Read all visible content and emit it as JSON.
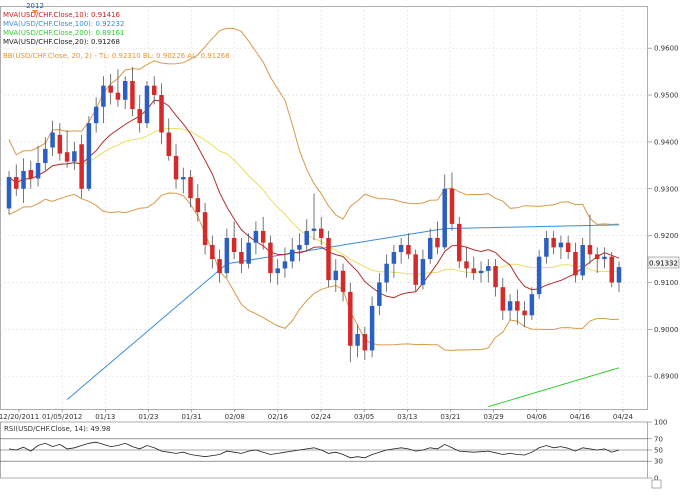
{
  "chart_data": {
    "type": "candlestick",
    "symbol": "USD/CHF",
    "top_marker": "2012",
    "legend": [
      {
        "text": "MVA(USD/CHF.Close,10): 0.91416",
        "color": "#cc2222"
      },
      {
        "text": "MVA(USD/CHF.Close,100): 0.92232",
        "color": "#3a8ed8"
      },
      {
        "text": "MVA(USD/CHF.Close,200): 0.89161",
        "color": "#33cc33"
      },
      {
        "text": "MVA(USD/CHF.Close,20): 0.91268",
        "color": "#222222"
      },
      {
        "text": "BB(USD/CHF.Close, 20, 2) - TL: 0.92310  BL: 0.90226  AL: 0.91268",
        "color": "#e89430"
      }
    ],
    "price_axis": {
      "min": 0.883,
      "max": 0.969,
      "ticks": [
        "0.9600",
        "0.9500",
        "0.9400",
        "0.9300",
        "0.9200",
        "0.9100",
        "0.9000",
        "0.8900"
      ],
      "last_price": "0.91332"
    },
    "x_ticks": [
      "12/20/2011",
      "01/05/2012",
      "01/13",
      "01/23",
      "01/31",
      "02/08",
      "02/16",
      "02/24",
      "03/05",
      "03/13",
      "03/21",
      "03/29",
      "04/06",
      "04/16",
      "04/24"
    ],
    "candles": [
      {
        "o": 0.9258,
        "h": 0.9338,
        "l": 0.9245,
        "c": 0.9325
      },
      {
        "o": 0.9325,
        "h": 0.9352,
        "l": 0.9285,
        "c": 0.93
      },
      {
        "o": 0.93,
        "h": 0.9365,
        "l": 0.927,
        "c": 0.9338
      },
      {
        "o": 0.934,
        "h": 0.936,
        "l": 0.93,
        "c": 0.9322
      },
      {
        "o": 0.9322,
        "h": 0.9392,
        "l": 0.9305,
        "c": 0.9355
      },
      {
        "o": 0.9355,
        "h": 0.941,
        "l": 0.934,
        "c": 0.9385
      },
      {
        "o": 0.9388,
        "h": 0.9445,
        "l": 0.937,
        "c": 0.942
      },
      {
        "o": 0.9415,
        "h": 0.944,
        "l": 0.936,
        "c": 0.9375
      },
      {
        "o": 0.9378,
        "h": 0.9425,
        "l": 0.9345,
        "c": 0.9358
      },
      {
        "o": 0.9358,
        "h": 0.94,
        "l": 0.934,
        "c": 0.938
      },
      {
        "o": 0.9395,
        "h": 0.9415,
        "l": 0.928,
        "c": 0.93
      },
      {
        "o": 0.93,
        "h": 0.9455,
        "l": 0.9295,
        "c": 0.944
      },
      {
        "o": 0.944,
        "h": 0.9495,
        "l": 0.942,
        "c": 0.9475
      },
      {
        "o": 0.9475,
        "h": 0.954,
        "l": 0.944,
        "c": 0.952
      },
      {
        "o": 0.952,
        "h": 0.9545,
        "l": 0.948,
        "c": 0.9505
      },
      {
        "o": 0.9505,
        "h": 0.9555,
        "l": 0.9475,
        "c": 0.949
      },
      {
        "o": 0.949,
        "h": 0.954,
        "l": 0.947,
        "c": 0.953
      },
      {
        "o": 0.953,
        "h": 0.956,
        "l": 0.9455,
        "c": 0.947
      },
      {
        "o": 0.947,
        "h": 0.95,
        "l": 0.942,
        "c": 0.944
      },
      {
        "o": 0.944,
        "h": 0.953,
        "l": 0.943,
        "c": 0.952
      },
      {
        "o": 0.952,
        "h": 0.954,
        "l": 0.948,
        "c": 0.95
      },
      {
        "o": 0.95,
        "h": 0.9525,
        "l": 0.9395,
        "c": 0.942
      },
      {
        "o": 0.942,
        "h": 0.945,
        "l": 0.936,
        "c": 0.937
      },
      {
        "o": 0.937,
        "h": 0.9395,
        "l": 0.93,
        "c": 0.932
      },
      {
        "o": 0.932,
        "h": 0.9345,
        "l": 0.929,
        "c": 0.9325
      },
      {
        "o": 0.9325,
        "h": 0.934,
        "l": 0.926,
        "c": 0.928
      },
      {
        "o": 0.928,
        "h": 0.931,
        "l": 0.923,
        "c": 0.925
      },
      {
        "o": 0.925,
        "h": 0.927,
        "l": 0.916,
        "c": 0.918
      },
      {
        "o": 0.918,
        "h": 0.92,
        "l": 0.913,
        "c": 0.915
      },
      {
        "o": 0.915,
        "h": 0.917,
        "l": 0.91,
        "c": 0.912
      },
      {
        "o": 0.912,
        "h": 0.9215,
        "l": 0.911,
        "c": 0.9195
      },
      {
        "o": 0.9195,
        "h": 0.923,
        "l": 0.915,
        "c": 0.9165
      },
      {
        "o": 0.9165,
        "h": 0.9195,
        "l": 0.912,
        "c": 0.914
      },
      {
        "o": 0.914,
        "h": 0.9205,
        "l": 0.913,
        "c": 0.9185
      },
      {
        "o": 0.9185,
        "h": 0.923,
        "l": 0.916,
        "c": 0.921
      },
      {
        "o": 0.921,
        "h": 0.924,
        "l": 0.917,
        "c": 0.9185
      },
      {
        "o": 0.9185,
        "h": 0.92,
        "l": 0.91,
        "c": 0.912
      },
      {
        "o": 0.912,
        "h": 0.915,
        "l": 0.9095,
        "c": 0.913
      },
      {
        "o": 0.913,
        "h": 0.9175,
        "l": 0.911,
        "c": 0.9145
      },
      {
        "o": 0.9145,
        "h": 0.9195,
        "l": 0.913,
        "c": 0.917
      },
      {
        "o": 0.917,
        "h": 0.9205,
        "l": 0.9145,
        "c": 0.918
      },
      {
        "o": 0.918,
        "h": 0.9235,
        "l": 0.9165,
        "c": 0.921
      },
      {
        "o": 0.921,
        "h": 0.929,
        "l": 0.919,
        "c": 0.9215
      },
      {
        "o": 0.9215,
        "h": 0.924,
        "l": 0.918,
        "c": 0.9195
      },
      {
        "o": 0.9195,
        "h": 0.921,
        "l": 0.909,
        "c": 0.9105
      },
      {
        "o": 0.9105,
        "h": 0.915,
        "l": 0.908,
        "c": 0.9125
      },
      {
        "o": 0.9125,
        "h": 0.914,
        "l": 0.906,
        "c": 0.908
      },
      {
        "o": 0.908,
        "h": 0.91,
        "l": 0.893,
        "c": 0.8965
      },
      {
        "o": 0.8965,
        "h": 0.901,
        "l": 0.894,
        "c": 0.899
      },
      {
        "o": 0.899,
        "h": 0.9005,
        "l": 0.8935,
        "c": 0.8955
      },
      {
        "o": 0.8955,
        "h": 0.907,
        "l": 0.894,
        "c": 0.905
      },
      {
        "o": 0.905,
        "h": 0.912,
        "l": 0.903,
        "c": 0.91
      },
      {
        "o": 0.91,
        "h": 0.916,
        "l": 0.908,
        "c": 0.914
      },
      {
        "o": 0.914,
        "h": 0.918,
        "l": 0.911,
        "c": 0.9165
      },
      {
        "o": 0.9165,
        "h": 0.9195,
        "l": 0.914,
        "c": 0.918
      },
      {
        "o": 0.918,
        "h": 0.9205,
        "l": 0.915,
        "c": 0.916
      },
      {
        "o": 0.916,
        "h": 0.917,
        "l": 0.908,
        "c": 0.9095
      },
      {
        "o": 0.9095,
        "h": 0.917,
        "l": 0.9085,
        "c": 0.915
      },
      {
        "o": 0.915,
        "h": 0.9215,
        "l": 0.914,
        "c": 0.9195
      },
      {
        "o": 0.9195,
        "h": 0.923,
        "l": 0.916,
        "c": 0.9175
      },
      {
        "o": 0.9175,
        "h": 0.933,
        "l": 0.917,
        "c": 0.93
      },
      {
        "o": 0.93,
        "h": 0.9335,
        "l": 0.921,
        "c": 0.9225
      },
      {
        "o": 0.9225,
        "h": 0.924,
        "l": 0.913,
        "c": 0.9145
      },
      {
        "o": 0.9145,
        "h": 0.9175,
        "l": 0.911,
        "c": 0.913
      },
      {
        "o": 0.913,
        "h": 0.9155,
        "l": 0.9105,
        "c": 0.912
      },
      {
        "o": 0.912,
        "h": 0.9145,
        "l": 0.91,
        "c": 0.9125
      },
      {
        "o": 0.9125,
        "h": 0.915,
        "l": 0.91,
        "c": 0.9135
      },
      {
        "o": 0.9135,
        "h": 0.915,
        "l": 0.907,
        "c": 0.909
      },
      {
        "o": 0.909,
        "h": 0.911,
        "l": 0.902,
        "c": 0.904
      },
      {
        "o": 0.904,
        "h": 0.9075,
        "l": 0.902,
        "c": 0.906
      },
      {
        "o": 0.906,
        "h": 0.9085,
        "l": 0.901,
        "c": 0.904
      },
      {
        "o": 0.904,
        "h": 0.906,
        "l": 0.9005,
        "c": 0.903
      },
      {
        "o": 0.903,
        "h": 0.909,
        "l": 0.902,
        "c": 0.9075
      },
      {
        "o": 0.9075,
        "h": 0.917,
        "l": 0.9065,
        "c": 0.9155
      },
      {
        "o": 0.9155,
        "h": 0.921,
        "l": 0.914,
        "c": 0.9195
      },
      {
        "o": 0.9195,
        "h": 0.921,
        "l": 0.916,
        "c": 0.9175
      },
      {
        "o": 0.9175,
        "h": 0.92,
        "l": 0.915,
        "c": 0.9185
      },
      {
        "o": 0.9185,
        "h": 0.92,
        "l": 0.915,
        "c": 0.9165
      },
      {
        "o": 0.9165,
        "h": 0.9185,
        "l": 0.91,
        "c": 0.9115
      },
      {
        "o": 0.9115,
        "h": 0.9195,
        "l": 0.9105,
        "c": 0.918
      },
      {
        "o": 0.918,
        "h": 0.9245,
        "l": 0.914,
        "c": 0.916
      },
      {
        "o": 0.916,
        "h": 0.9175,
        "l": 0.912,
        "c": 0.915
      },
      {
        "o": 0.915,
        "h": 0.9175,
        "l": 0.913,
        "c": 0.9155
      },
      {
        "o": 0.9155,
        "h": 0.9165,
        "l": 0.909,
        "c": 0.91
      },
      {
        "o": 0.91,
        "h": 0.9145,
        "l": 0.908,
        "c": 0.9133
      }
    ],
    "rsi": {
      "label": "RSI(USD/CHF.Close, 14): 49.98",
      "ticks": [
        "100",
        "70",
        "50",
        "30",
        "0"
      ],
      "values": [
        52,
        50,
        55,
        48,
        58,
        62,
        56,
        60,
        52,
        54,
        58,
        62,
        64,
        60,
        56,
        58,
        62,
        56,
        52,
        58,
        54,
        48,
        46,
        44,
        46,
        42,
        40,
        38,
        40,
        42,
        48,
        46,
        44,
        48,
        50,
        46,
        42,
        44,
        46,
        48,
        50,
        52,
        54,
        50,
        44,
        46,
        42,
        36,
        38,
        36,
        42,
        46,
        50,
        52,
        54,
        52,
        48,
        50,
        54,
        52,
        60,
        54,
        48,
        47,
        46,
        47,
        48,
        45,
        42,
        44,
        42,
        41,
        46,
        54,
        58,
        54,
        56,
        53,
        48,
        54,
        52,
        50,
        52,
        46,
        50
      ]
    }
  }
}
